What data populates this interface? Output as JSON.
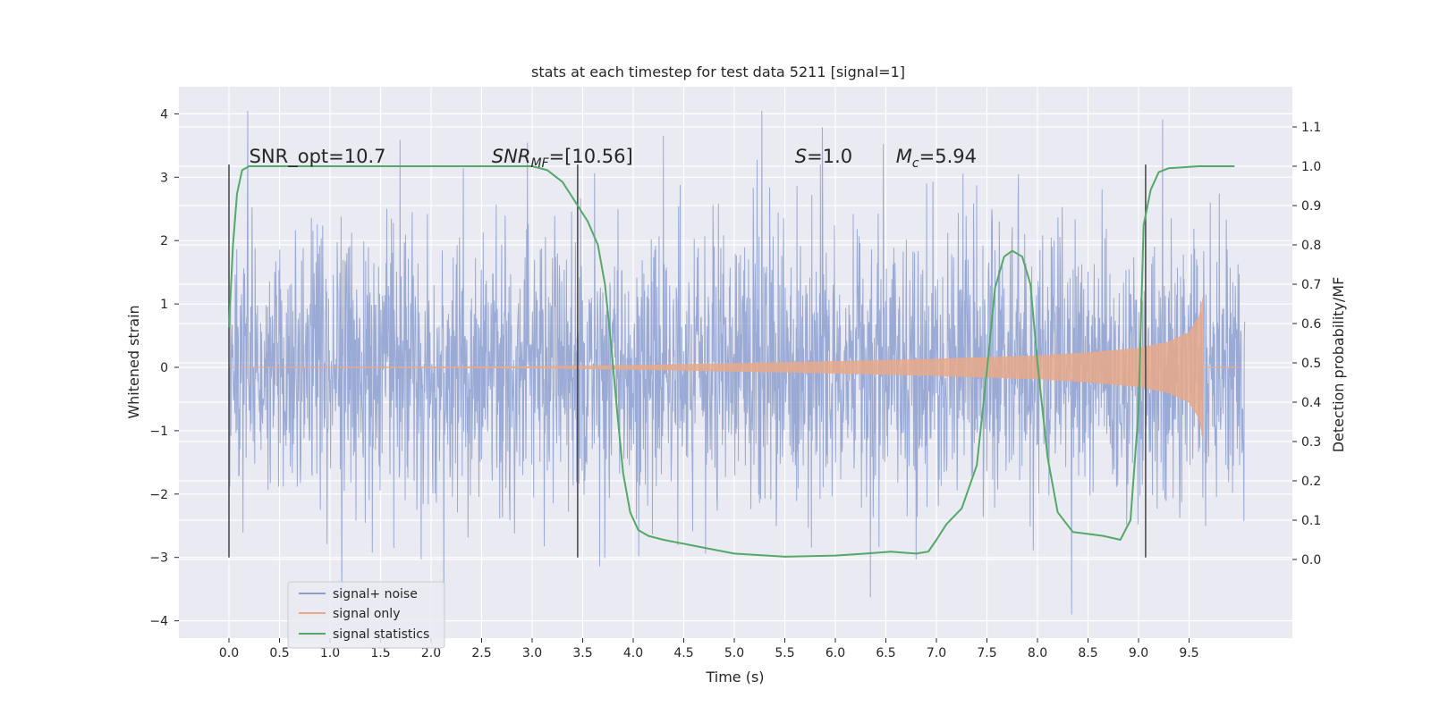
{
  "chart_data": {
    "type": "line",
    "title": "stats at each timestep for test data 5211 [signal=1]",
    "xlabel": "Time (s)",
    "ylabel_left": "Whitened strain",
    "ylabel_right": "Detection probability/MF",
    "xlim": [
      -0.5,
      10.5
    ],
    "ylim_left": [
      -4.4,
      4.4
    ],
    "ylim_right": [
      -0.195,
      1.195
    ],
    "x_ticks": [
      "0.0",
      "0.5",
      "1.0",
      "1.5",
      "2.0",
      "2.5",
      "3.0",
      "3.5",
      "4.0",
      "4.5",
      "5.0",
      "5.5",
      "6.0",
      "6.5",
      "7.0",
      "7.5",
      "8.0",
      "8.5",
      "9.0",
      "9.5"
    ],
    "y_left_ticks": [
      "−4",
      "−3",
      "−2",
      "−1",
      "0",
      "1",
      "2",
      "3",
      "4"
    ],
    "y_right_ticks": [
      "0.0",
      "0.1",
      "0.2",
      "0.3",
      "0.4",
      "0.5",
      "0.6",
      "0.7",
      "0.8",
      "0.9",
      "1.0",
      "1.1"
    ],
    "grid": true,
    "legend_position": "lower-left",
    "series": [
      {
        "name": "signal+ noise",
        "color": "#8c9fd0",
        "description_range": [
          -3.9,
          4.05
        ],
        "x_range": [
          0.0,
          10.05
        ]
      },
      {
        "name": "signal only",
        "color": "#e8a98a",
        "envelope": [
          {
            "x": 0.0,
            "amp": 0.0
          },
          {
            "x": 3.0,
            "amp": 0.01
          },
          {
            "x": 4.0,
            "amp": 0.03
          },
          {
            "x": 5.0,
            "amp": 0.06
          },
          {
            "x": 6.0,
            "amp": 0.09
          },
          {
            "x": 7.0,
            "amp": 0.13
          },
          {
            "x": 8.0,
            "amp": 0.18
          },
          {
            "x": 8.5,
            "amp": 0.23
          },
          {
            "x": 9.0,
            "amp": 0.3
          },
          {
            "x": 9.3,
            "amp": 0.4
          },
          {
            "x": 9.5,
            "amp": 0.55
          },
          {
            "x": 9.6,
            "amp": 0.8
          },
          {
            "x": 9.65,
            "amp": 1.2
          }
        ]
      },
      {
        "name": "signal statistics",
        "color": "#55a868",
        "points": [
          [
            0.0,
            0.59
          ],
          [
            0.04,
            0.8
          ],
          [
            0.08,
            0.93
          ],
          [
            0.13,
            0.99
          ],
          [
            0.2,
            1.0
          ],
          [
            3.0,
            1.0
          ],
          [
            3.15,
            0.99
          ],
          [
            3.3,
            0.96
          ],
          [
            3.45,
            0.9
          ],
          [
            3.55,
            0.86
          ],
          [
            3.65,
            0.8
          ],
          [
            3.72,
            0.7
          ],
          [
            3.78,
            0.55
          ],
          [
            3.84,
            0.38
          ],
          [
            3.9,
            0.22
          ],
          [
            3.97,
            0.12
          ],
          [
            4.05,
            0.075
          ],
          [
            4.15,
            0.06
          ],
          [
            4.3,
            0.05
          ],
          [
            4.6,
            0.035
          ],
          [
            5.0,
            0.015
          ],
          [
            5.5,
            0.007
          ],
          [
            6.0,
            0.01
          ],
          [
            6.3,
            0.015
          ],
          [
            6.55,
            0.02
          ],
          [
            6.8,
            0.015
          ],
          [
            6.92,
            0.02
          ],
          [
            7.0,
            0.05
          ],
          [
            7.1,
            0.09
          ],
          [
            7.25,
            0.13
          ],
          [
            7.4,
            0.24
          ],
          [
            7.5,
            0.48
          ],
          [
            7.58,
            0.69
          ],
          [
            7.67,
            0.77
          ],
          [
            7.75,
            0.785
          ],
          [
            7.85,
            0.77
          ],
          [
            7.93,
            0.7
          ],
          [
            8.0,
            0.5
          ],
          [
            8.1,
            0.26
          ],
          [
            8.2,
            0.12
          ],
          [
            8.35,
            0.07
          ],
          [
            8.5,
            0.065
          ],
          [
            8.65,
            0.06
          ],
          [
            8.82,
            0.05
          ],
          [
            8.92,
            0.1
          ],
          [
            9.0,
            0.38
          ],
          [
            9.05,
            0.85
          ],
          [
            9.12,
            0.94
          ],
          [
            9.2,
            0.985
          ],
          [
            9.3,
            0.995
          ],
          [
            9.6,
            1.0
          ],
          [
            9.95,
            1.0
          ]
        ]
      }
    ],
    "vertical_markers": [
      {
        "x": 0.0,
        "y0": -3.0,
        "y1": 3.2
      },
      {
        "x": 3.45,
        "y0": -3.0,
        "y1": 3.2
      },
      {
        "x": 9.07,
        "y0": -3.0,
        "y1": 3.2
      }
    ],
    "annotations": [
      {
        "id": "snr-opt",
        "text": "SNR_opt=10.7",
        "x": 0.2,
        "y": 3.2
      },
      {
        "id": "snr-mf",
        "prefix": "SNR",
        "sub": "MF",
        "suffix": "=[10.56]",
        "x": 2.6,
        "y": 3.2
      },
      {
        "id": "s-value",
        "prefix": "S",
        "suffix": "=1.0",
        "x": 5.6,
        "y": 3.2
      },
      {
        "id": "mc-value",
        "prefix": "M",
        "sub": "c",
        "suffix": "=5.94",
        "x": 6.6,
        "y": 3.2
      }
    ]
  }
}
